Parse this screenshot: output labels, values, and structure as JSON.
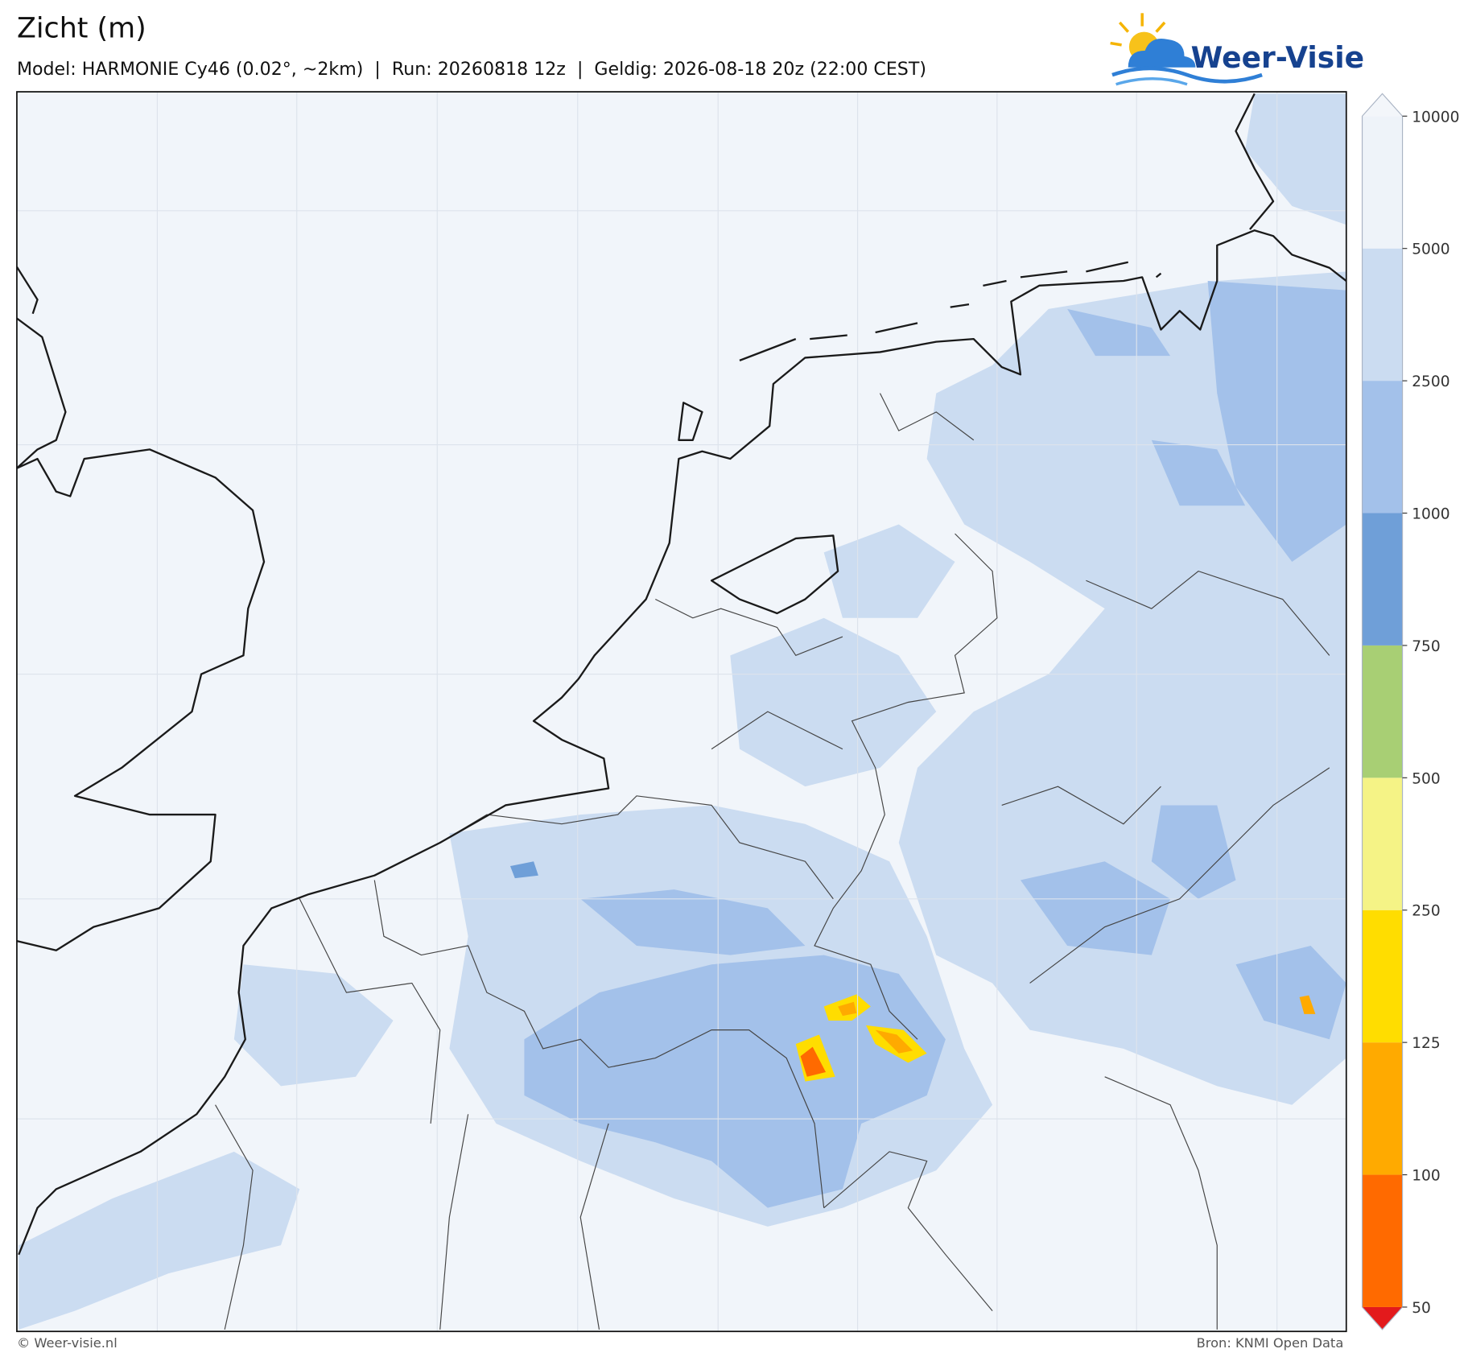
{
  "header": {
    "title": "Zicht (m)",
    "subtitle": "Model: HARMONIE Cy46 (0.02°, ~2km)  |  Run: 20260818 12z  |  Geldig: 2026-08-18 20z (22:00 CEST)",
    "logo": "Weer-Visie"
  },
  "colorbar": {
    "levels": [
      50,
      100,
      125,
      250,
      500,
      750,
      1000,
      2500,
      5000,
      10000
    ],
    "colors": [
      "#ff6a00",
      "#ffaa00",
      "#ffdd00",
      "#f5f386",
      "#a8cf74",
      "#6f9fd8",
      "#a3c1ea",
      "#cbdcf1",
      "#eef3f9"
    ],
    "under_color": "#e31a1c",
    "over_color": "#f3f6fa"
  },
  "footer": {
    "left": "© Weer-visie.nl",
    "right": "Bron: KNMI Open Data"
  }
}
